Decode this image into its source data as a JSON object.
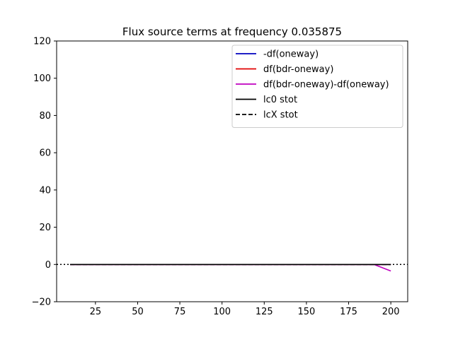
{
  "chart_data": {
    "type": "line",
    "title": "Flux source terms at frequency 0.035875",
    "xlabel": "",
    "ylabel": "",
    "xlim": [
      2,
      210
    ],
    "ylim": [
      -20,
      120
    ],
    "xticks": [
      25,
      50,
      75,
      100,
      125,
      150,
      175,
      200
    ],
    "yticks": [
      -20,
      0,
      20,
      40,
      60,
      80,
      100,
      120
    ],
    "xtick_labels": [
      "25",
      "50",
      "75",
      "100",
      "125",
      "150",
      "175",
      "200"
    ],
    "ytick_labels": [
      "−20",
      "0",
      "20",
      "40",
      "60",
      "80",
      "100",
      "120"
    ],
    "grid": false,
    "legend_position": "top-right",
    "reference_line": {
      "y": 0,
      "style": "dotted",
      "color": "#000000"
    },
    "series": [
      {
        "name": "-df(oneway)",
        "color": "#0000bf",
        "style": "solid",
        "x": [
          10,
          190,
          200
        ],
        "y": [
          0,
          0,
          0
        ]
      },
      {
        "name": "df(bdr-oneway)",
        "color": "#e00000",
        "style": "solid",
        "x": [
          10,
          190,
          200
        ],
        "y": [
          0,
          0,
          0
        ]
      },
      {
        "name": "df(bdr-oneway)-df(oneway)",
        "color": "#bf00bf",
        "style": "solid",
        "x": [
          10,
          190,
          200
        ],
        "y": [
          0,
          0,
          -3.5
        ]
      },
      {
        "name": "lc0 stot",
        "color": "#000000",
        "style": "solid",
        "x": [
          10,
          190,
          200
        ],
        "y": [
          0,
          0,
          0
        ]
      },
      {
        "name": "lcX stot",
        "color": "#000000",
        "style": "dashed",
        "x": [
          10,
          190,
          200
        ],
        "y": [
          0,
          0,
          0
        ]
      }
    ]
  }
}
